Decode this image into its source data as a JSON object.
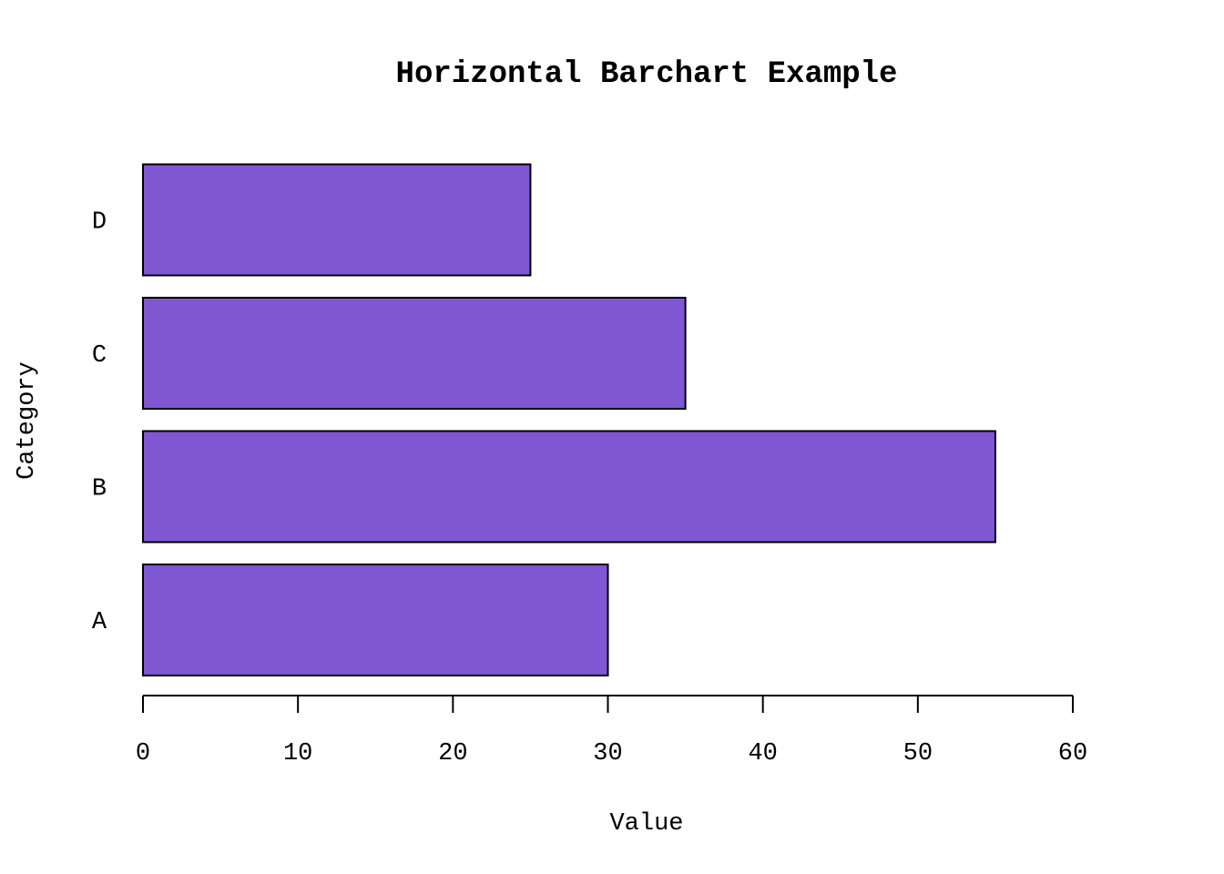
{
  "chart_data": {
    "type": "bar",
    "orientation": "horizontal",
    "title": "Horizontal Barchart Example",
    "xlabel": "Value",
    "ylabel": "Category",
    "categories": [
      "A",
      "B",
      "C",
      "D"
    ],
    "values": [
      30,
      55,
      35,
      25
    ],
    "xlim": [
      0,
      60
    ],
    "xticks": [
      0,
      10,
      20,
      30,
      40,
      50,
      60
    ],
    "xtick_labels": [
      "0",
      "10",
      "20",
      "30",
      "40",
      "50",
      "60"
    ],
    "bar_color": "#7f57d3",
    "edge_color": "#000000",
    "grid": false,
    "legend": "none"
  }
}
